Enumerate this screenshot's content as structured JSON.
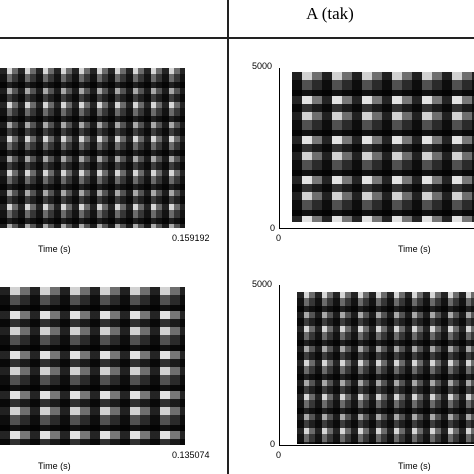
{
  "header": {
    "title": "A (tak)"
  },
  "panels": [
    {
      "x_label": "Time (s)",
      "x_end": 0.159192
    },
    {
      "y_max": 5000,
      "y_min": 0,
      "x_start": 0,
      "x_label": "Time (s)"
    },
    {
      "x_label": "Time (s)",
      "x_end": 0.135074
    },
    {
      "y_max": 5000,
      "y_min": 0,
      "x_start": 0,
      "x_label": "Time (s)"
    }
  ]
}
